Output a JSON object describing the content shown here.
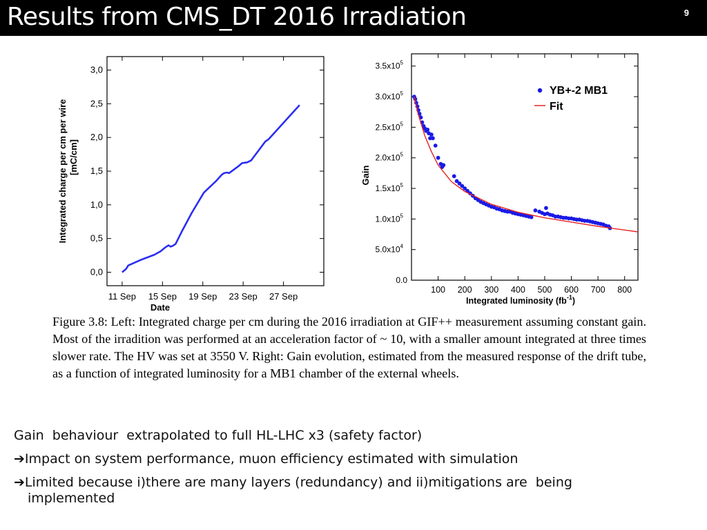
{
  "slide": {
    "title": "Results from CMS_DT 2016 Irradiation",
    "number": "9"
  },
  "figure_caption": "Figure 3.8: Left: Integrated charge per cm during the 2016 irradiation at GIF++ measurement assuming constant gain. Most of the irradition was performed at an acceleration factor of ~ 10, with a smaller amount integrated at three times slower rate. The HV was set at 3550 V. Right: Gain evolution, estimated from the measured response of the drift tube, as a function of integrated luminosity for a MB1 chamber of the external wheels.",
  "bullets": [
    {
      "arrow": "",
      "text": "Gain  behaviour  extrapolated to full HL-LHC x3 (safety factor)",
      "cont": ""
    },
    {
      "arrow": "➔",
      "text": "Impact on system performance, muon efficiency estimated with simulation",
      "cont": ""
    },
    {
      "arrow": "➔",
      "text": "Limited because i)there are many layers (redundancy) and ii)mitigations are  being",
      "cont": "implemented"
    }
  ],
  "chart_data": [
    {
      "type": "line",
      "title": "",
      "xlabel": "Date",
      "ylabel": "Integrated charge per cm per wire",
      "ylabel_unit": "[mC/cm]",
      "x_tick_labels": [
        "11 Sep",
        "15 Sep",
        "19 Sep",
        "23 Sep",
        "27 Sep"
      ],
      "x_tick_values": [
        11,
        15,
        19,
        23,
        27
      ],
      "y_tick_labels": [
        "0,0",
        "0,5",
        "1,0",
        "1,5",
        "2,0",
        "2,5",
        "3,0"
      ],
      "y_tick_values": [
        0,
        0.5,
        1.0,
        1.5,
        2.0,
        2.5,
        3.0
      ],
      "xlim": [
        9.5,
        31
      ],
      "ylim": [
        -0.2,
        3.2
      ],
      "line_color": "#2b2ef0",
      "series": [
        {
          "x": [
            11.0,
            11.4,
            11.6,
            12.2,
            12.8,
            13.5,
            14.2,
            14.8,
            15.3,
            15.6,
            15.8,
            16.0,
            16.3,
            16.9,
            17.9,
            19.1,
            20.3,
            20.9,
            21.1,
            21.4,
            21.6,
            22.5,
            22.9,
            23.4,
            23.8,
            25.2,
            25.5,
            28.6
          ],
          "y": [
            0.0,
            0.05,
            0.1,
            0.14,
            0.18,
            0.22,
            0.26,
            0.31,
            0.37,
            0.4,
            0.38,
            0.39,
            0.42,
            0.6,
            0.88,
            1.18,
            1.35,
            1.45,
            1.47,
            1.48,
            1.47,
            1.57,
            1.62,
            1.63,
            1.66,
            1.94,
            1.97,
            2.48
          ]
        }
      ]
    },
    {
      "type": "scatter",
      "title": "",
      "xlabel": "Integrated luminosity (fb",
      "xlabel_sup": "-1",
      "xlabel_end": ")",
      "ylabel": "Gain",
      "x_tick_labels": [
        "100",
        "200",
        "300",
        "400",
        "500",
        "600",
        "700",
        "800"
      ],
      "x_tick_values": [
        100,
        200,
        300,
        400,
        500,
        600,
        700,
        800
      ],
      "y_tick_labels": [
        "0.0",
        "5.0x10",
        "1.0x10",
        "1.5x10",
        "2.0x10",
        "2.5x10",
        "3.0x10",
        "3.5x10"
      ],
      "y_tick_exponents": [
        "",
        "4",
        "5",
        "5",
        "5",
        "5",
        "5",
        "5"
      ],
      "y_tick_values": [
        0,
        50000,
        100000,
        150000,
        200000,
        250000,
        300000,
        350000
      ],
      "xlim": [
        0,
        850
      ],
      "ylim": [
        0,
        370000
      ],
      "legend": {
        "position": "top-right",
        "entries": [
          {
            "label": "YB+-2 MB1",
            "marker": "dot",
            "color": "#1a1ae6"
          },
          {
            "label": "Fit",
            "marker": "line",
            "color": "#e52222"
          }
        ]
      },
      "series": [
        {
          "name": "YB+-2 MB1",
          "color": "#1a1ae6",
          "x": [
            10,
            14,
            18,
            22,
            26,
            30,
            35,
            40,
            45,
            50,
            55,
            60,
            65,
            70,
            75,
            80,
            90,
            100,
            110,
            115,
            120,
            160,
            170,
            180,
            190,
            200,
            210,
            220,
            230,
            240,
            250,
            260,
            270,
            280,
            290,
            300,
            310,
            320,
            330,
            340,
            350,
            360,
            370,
            380,
            390,
            400,
            410,
            420,
            430,
            440,
            450,
            465,
            480,
            490,
            500,
            505,
            510,
            520,
            530,
            540,
            550,
            560,
            570,
            580,
            590,
            600,
            610,
            620,
            630,
            640,
            650,
            660,
            670,
            680,
            690,
            700,
            710,
            720,
            730,
            740,
            745
          ],
          "y": [
            300000,
            296000,
            290000,
            284000,
            278000,
            272000,
            266000,
            258000,
            252000,
            248000,
            244000,
            246000,
            240000,
            232000,
            238000,
            232000,
            220000,
            200000,
            190000,
            185000,
            188000,
            170000,
            162000,
            158000,
            154000,
            150000,
            146000,
            142000,
            138000,
            134000,
            131000,
            128000,
            126000,
            124000,
            122000,
            120000,
            119000,
            117000,
            116000,
            114000,
            113000,
            112000,
            112000,
            110000,
            109000,
            108000,
            107000,
            106000,
            105000,
            104000,
            103000,
            114000,
            112000,
            110000,
            108000,
            118000,
            109000,
            107000,
            106000,
            104000,
            104000,
            103000,
            102000,
            102000,
            101000,
            101000,
            100000,
            99000,
            99000,
            98000,
            97000,
            97000,
            96000,
            95000,
            94000,
            93000,
            92000,
            91000,
            89000,
            88000,
            85000
          ]
        },
        {
          "name": "Fit",
          "color": "#e52222",
          "x": [
            10,
            25,
            50,
            75,
            100,
            150,
            200,
            300,
            400,
            500,
            600,
            700,
            800,
            850
          ],
          "y": [
            300000,
            272000,
            236000,
            210000,
            188000,
            161000,
            145000,
            124000,
            111000,
            102000,
            95000,
            88000,
            82000,
            79000
          ]
        }
      ]
    }
  ]
}
